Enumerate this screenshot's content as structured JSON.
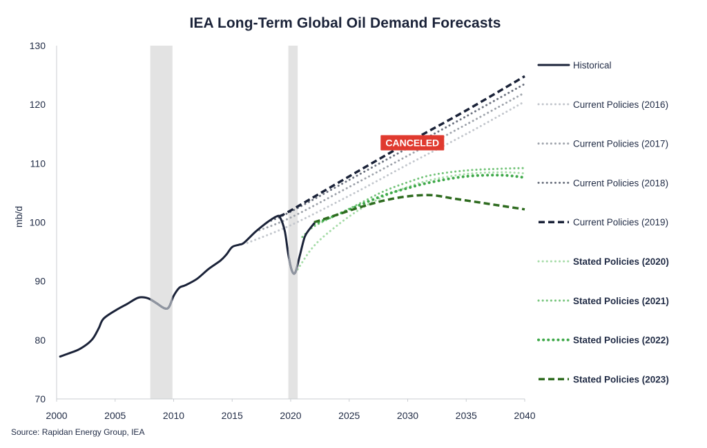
{
  "chart_data": {
    "type": "line",
    "title": "IEA Long-Term Global Oil Demand Forecasts",
    "xlabel": "",
    "ylabel": "mb/d",
    "xlim": [
      2000,
      2040
    ],
    "ylim": [
      70,
      130
    ],
    "x_ticks": [
      2000,
      2005,
      2010,
      2015,
      2020,
      2025,
      2030,
      2035,
      2040
    ],
    "y_ticks": [
      70,
      80,
      90,
      100,
      110,
      120,
      130
    ],
    "grid": false,
    "legend_position": "right",
    "shaded_periods": [
      [
        2008,
        2009.9
      ],
      [
        2019.8,
        2020.6
      ]
    ],
    "annotations": [
      {
        "text": "CANCELED",
        "x": 2030.4,
        "y": 113.5,
        "color": "#e03a2f"
      }
    ],
    "source": "Source: Rapidan Energy Group, IEA",
    "series": [
      {
        "name": "Historical",
        "color": "#1a2238",
        "style": "solid",
        "bold_label": false,
        "points": [
          [
            2000.3,
            77.2
          ],
          [
            2001,
            77.7
          ],
          [
            2002,
            78.5
          ],
          [
            2003,
            80.0
          ],
          [
            2003.6,
            82.0
          ],
          [
            2004,
            83.6
          ],
          [
            2005,
            85.0
          ],
          [
            2006,
            86.1
          ],
          [
            2007,
            87.2
          ],
          [
            2007.8,
            87.1
          ],
          [
            2008.5,
            86.3
          ],
          [
            2009.2,
            85.4
          ],
          [
            2009.6,
            85.6
          ],
          [
            2010,
            87.5
          ],
          [
            2010.5,
            88.9
          ],
          [
            2011,
            89.3
          ],
          [
            2012,
            90.4
          ],
          [
            2013,
            92.1
          ],
          [
            2014,
            93.5
          ],
          [
            2014.5,
            94.5
          ],
          [
            2015,
            95.8
          ],
          [
            2015.6,
            96.2
          ],
          [
            2016,
            96.5
          ],
          [
            2017,
            98.4
          ],
          [
            2018,
            100.0
          ],
          [
            2018.8,
            101.0
          ],
          [
            2019.1,
            100.8
          ],
          [
            2019.5,
            98.5
          ],
          [
            2019.8,
            94.5
          ],
          [
            2020.1,
            91.8
          ],
          [
            2020.4,
            91.5
          ],
          [
            2020.8,
            94.5
          ],
          [
            2021.2,
            97.5
          ],
          [
            2021.6,
            98.8
          ],
          [
            2022,
            99.8
          ]
        ]
      },
      {
        "name": "Current Policies (2016)",
        "color": "#c3c7cd",
        "style": "dotted",
        "bold_label": false,
        "points": [
          [
            2016.3,
            96.5
          ],
          [
            2020,
            99.5
          ],
          [
            2025,
            104.5
          ],
          [
            2030,
            109.8
          ],
          [
            2035,
            115.0
          ],
          [
            2040,
            120.5
          ]
        ]
      },
      {
        "name": "Current Policies (2017)",
        "color": "#9ea3ab",
        "style": "dotted",
        "bold_label": false,
        "points": [
          [
            2017,
            98.4
          ],
          [
            2020,
            100.8
          ],
          [
            2025,
            106.0
          ],
          [
            2030,
            111.3
          ],
          [
            2035,
            116.6
          ],
          [
            2040,
            122.0
          ]
        ]
      },
      {
        "name": "Current Policies (2018)",
        "color": "#6d7380",
        "style": "dotted",
        "bold_label": false,
        "points": [
          [
            2018,
            100.0
          ],
          [
            2020,
            101.8
          ],
          [
            2025,
            107.2
          ],
          [
            2030,
            112.6
          ],
          [
            2035,
            118.0
          ],
          [
            2040,
            123.5
          ]
        ]
      },
      {
        "name": "Current Policies (2019)",
        "color": "#1a2238",
        "style": "dashed",
        "bold_label": false,
        "points": [
          [
            2019,
            101.0
          ],
          [
            2020,
            102.0
          ],
          [
            2025,
            107.8
          ],
          [
            2030,
            113.5
          ],
          [
            2035,
            119.0
          ],
          [
            2040,
            124.8
          ]
        ]
      },
      {
        "name": "Stated Policies (2020)",
        "color": "#a6dca8",
        "style": "dotted",
        "bold_label": true,
        "points": [
          [
            2020.6,
            92.0
          ],
          [
            2022,
            96.0
          ],
          [
            2024,
            99.5
          ],
          [
            2026,
            102.3
          ],
          [
            2028,
            104.4
          ],
          [
            2030,
            106.0
          ],
          [
            2032,
            107.2
          ],
          [
            2035,
            108.2
          ],
          [
            2038,
            108.5
          ],
          [
            2040,
            108.3
          ]
        ]
      },
      {
        "name": "Stated Policies (2021)",
        "color": "#74c47a",
        "style": "dotted",
        "bold_label": true,
        "points": [
          [
            2021,
            97.5
          ],
          [
            2022,
            99.3
          ],
          [
            2024,
            101.3
          ],
          [
            2026,
            103.3
          ],
          [
            2028,
            105.3
          ],
          [
            2030,
            106.8
          ],
          [
            2032,
            108.0
          ],
          [
            2035,
            108.8
          ],
          [
            2038,
            109.1
          ],
          [
            2040,
            109.2
          ]
        ]
      },
      {
        "name": "Stated Policies (2022)",
        "color": "#3fa94a",
        "style": "dotted-heavy",
        "bold_label": true,
        "points": [
          [
            2022,
            99.7
          ],
          [
            2024,
            101.3
          ],
          [
            2026,
            103.0
          ],
          [
            2028,
            104.6
          ],
          [
            2030,
            105.8
          ],
          [
            2032,
            106.8
          ],
          [
            2035,
            107.8
          ],
          [
            2038,
            108.0
          ],
          [
            2040,
            107.6
          ]
        ]
      },
      {
        "name": "Stated Policies (2023)",
        "color": "#2e6b1f",
        "style": "dashed",
        "bold_label": true,
        "points": [
          [
            2022,
            100.0
          ],
          [
            2024,
            101.3
          ],
          [
            2026,
            102.6
          ],
          [
            2028,
            103.7
          ],
          [
            2030,
            104.4
          ],
          [
            2032,
            104.6
          ],
          [
            2034,
            104.0
          ],
          [
            2036,
            103.4
          ],
          [
            2038,
            102.8
          ],
          [
            2040,
            102.2
          ]
        ]
      }
    ]
  }
}
